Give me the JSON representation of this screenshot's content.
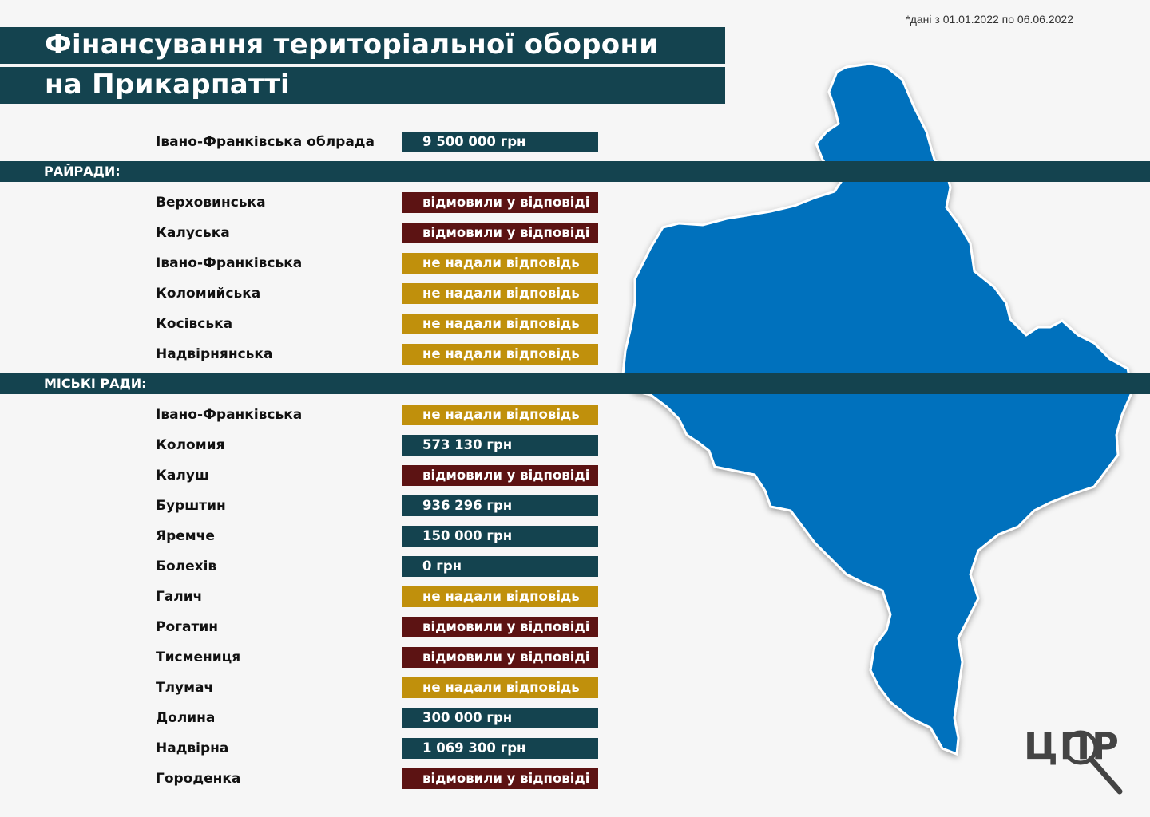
{
  "note": "*дані з 01.01.2022 по 06.06.2022",
  "title_line1": "Фінансування територіальної оборони",
  "title_line2": "на Прикарпатті",
  "colors": {
    "dark_teal": "#14434f",
    "refused": "#5c1313",
    "no_answer": "#c0900c",
    "map_blue": "#0071bd"
  },
  "oblrada": {
    "name": "Івано-Франківська облрада",
    "value": "9 500 000 грн",
    "status": "amount"
  },
  "sections": {
    "raion": "РАЙРАДИ:",
    "city": "МІСЬКІ РАДИ:"
  },
  "raion_rows": [
    {
      "name": "Верховинська",
      "value": "відмовили у відповіді",
      "status": "refused"
    },
    {
      "name": "Калуська",
      "value": "відмовили у відповіді",
      "status": "refused"
    },
    {
      "name": "Івано-Франківська",
      "value": "не надали відповідь",
      "status": "no_answer"
    },
    {
      "name": "Коломийська",
      "value": "не надали відповідь",
      "status": "no_answer"
    },
    {
      "name": "Косівська",
      "value": "не надали відповідь",
      "status": "no_answer"
    },
    {
      "name": "Надвірнянська",
      "value": "не надали відповідь",
      "status": "no_answer"
    }
  ],
  "city_rows": [
    {
      "name": "Івано-Франківська",
      "value": "не надали відповідь",
      "status": "no_answer"
    },
    {
      "name": "Коломия",
      "value": "573 130 грн",
      "status": "amount"
    },
    {
      "name": "Калуш",
      "value": "відмовили у відповіді",
      "status": "refused"
    },
    {
      "name": "Бурштин",
      "value": "936 296 грн",
      "status": "amount"
    },
    {
      "name": "Яремче",
      "value": "150 000 грн",
      "status": "amount"
    },
    {
      "name": "Болехів",
      "value": "0 грн",
      "status": "amount"
    },
    {
      "name": "Галич",
      "value": "не надали відповідь",
      "status": "no_answer"
    },
    {
      "name": "Рогатин",
      "value": "відмовили у відповіді",
      "status": "refused"
    },
    {
      "name": "Тисмениця",
      "value": "відмовили у відповіді",
      "status": "refused"
    },
    {
      "name": "Тлумач",
      "value": "не надали відповідь",
      "status": "no_answer"
    },
    {
      "name": "Долина",
      "value": "300 000 грн",
      "status": "amount"
    },
    {
      "name": "Надвірна",
      "value": "1 069 300 грн",
      "status": "amount"
    },
    {
      "name": "Городенка",
      "value": "відмовили у відповіді",
      "status": "refused"
    }
  ],
  "logo_text": "ЦПР"
}
